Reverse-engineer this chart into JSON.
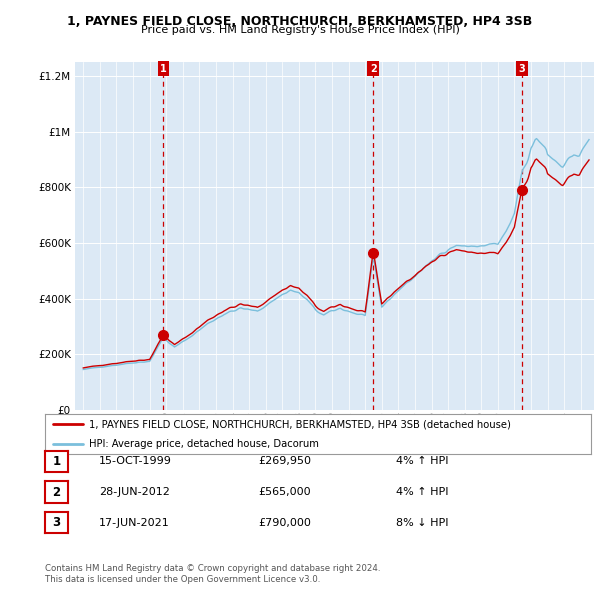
{
  "title": "1, PAYNES FIELD CLOSE, NORTHCHURCH, BERKHAMSTED, HP4 3SB",
  "subtitle": "Price paid vs. HM Land Registry's House Price Index (HPI)",
  "legend_line1": "1, PAYNES FIELD CLOSE, NORTHCHURCH, BERKHAMSTED, HP4 3SB (detached house)",
  "legend_line2": "HPI: Average price, detached house, Dacorum",
  "sale_points": [
    {
      "date_num": 1999.83,
      "price": 269950,
      "label": "1"
    },
    {
      "date_num": 2012.49,
      "price": 565000,
      "label": "2"
    },
    {
      "date_num": 2021.46,
      "price": 790000,
      "label": "3"
    }
  ],
  "table_rows": [
    {
      "num": "1",
      "date": "15-OCT-1999",
      "price": "£269,950",
      "hpi": "4% ↑ HPI"
    },
    {
      "num": "2",
      "date": "28-JUN-2012",
      "price": "£565,000",
      "hpi": "4% ↑ HPI"
    },
    {
      "num": "3",
      "date": "17-JUN-2021",
      "price": "£790,000",
      "hpi": "8% ↓ HPI"
    }
  ],
  "footer1": "Contains HM Land Registry data © Crown copyright and database right 2024.",
  "footer2": "This data is licensed under the Open Government Licence v3.0.",
  "hpi_color": "#7bbfdc",
  "price_color": "#cc0000",
  "vline_color": "#cc0000",
  "background_color": "#dce9f5",
  "ylim": [
    0,
    1250000
  ],
  "xlim_start": 1994.5,
  "xlim_end": 2025.8
}
